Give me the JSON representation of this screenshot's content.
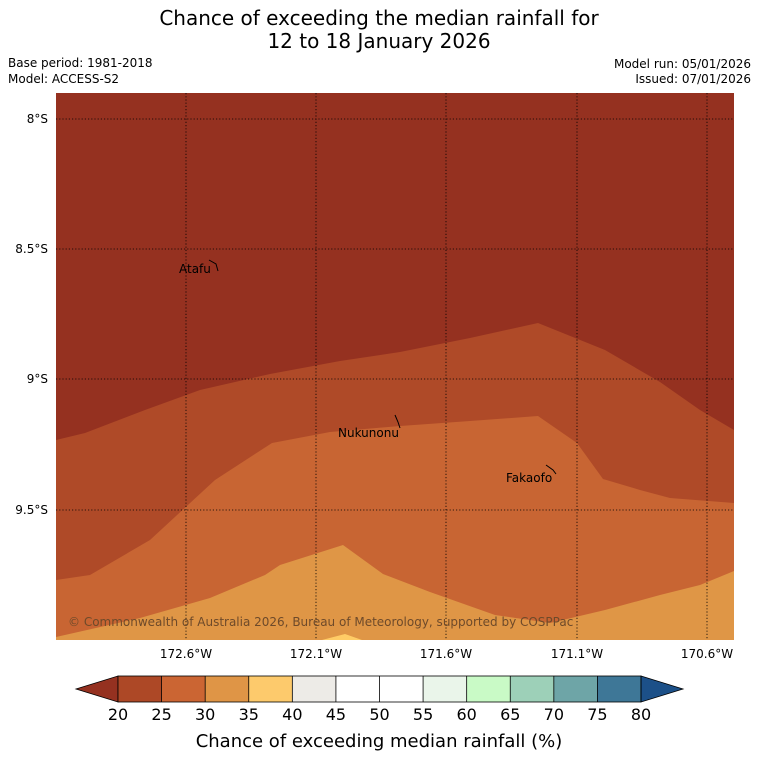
{
  "title": {
    "line1": "Chance of exceeding the median rainfall for",
    "line2": "12 to 18 January 2026"
  },
  "meta": {
    "base_period": "Base period: 1981-2018",
    "model": "Model: ACCESS-S2",
    "model_run": "Model run: 05/01/2026",
    "issued": "Issued: 07/01/2026"
  },
  "map": {
    "lat_ticks": [
      "8°S",
      "8.5°S",
      "9°S",
      "9.5°S"
    ],
    "lon_ticks": [
      "172.6°W",
      "172.1°W",
      "171.6°W",
      "171.1°W",
      "170.6°W"
    ],
    "places": [
      {
        "name": "Atafu"
      },
      {
        "name": "Nukunonu"
      },
      {
        "name": "Fakaofo"
      }
    ],
    "copyright": "© Commonwealth of Australia 2026, Bureau of Meteorology, supported by COSPPac",
    "region_colors": {
      "20": "#953120",
      "25": "#AF4A28",
      "30": "#C86533",
      "35": "#DF9646",
      "40": "#FFCC66"
    }
  },
  "colorbar": {
    "labels": [
      "20",
      "25",
      "30",
      "35",
      "40",
      "45",
      "50",
      "55",
      "60",
      "65",
      "70",
      "75",
      "80"
    ],
    "colors": [
      "#AD4826",
      "#CB6533",
      "#DF9546",
      "#FDCA6C",
      "#EDEBE7",
      "#FFFFFF",
      "#FFFFFF",
      "#EAF5EA",
      "#C9FAC6",
      "#9DD0B8",
      "#6EA5A7",
      "#3E7797"
    ],
    "under_color": "#953120",
    "over_color": "#1C5088",
    "title": "Chance of exceeding median rainfall (%)"
  }
}
